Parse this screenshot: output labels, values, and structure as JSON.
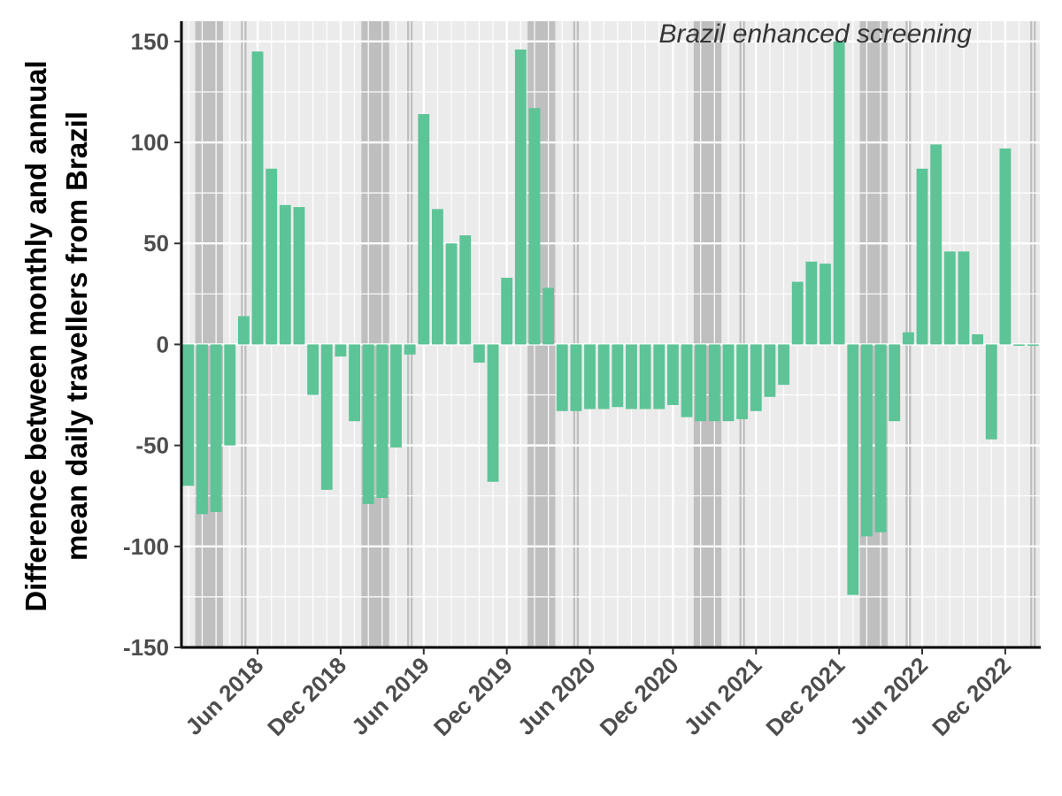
{
  "chart_data": {
    "type": "bar",
    "ylabel": [
      "Difference between monthly and annual",
      "mean daily travellers from Brazil"
    ],
    "ylim": [
      -150,
      160
    ],
    "yticks": [
      150,
      100,
      50,
      0,
      -50,
      -100,
      -150
    ],
    "ytick_labels": [
      "150",
      "100",
      "50",
      "0",
      "-50",
      "-100",
      "-150"
    ],
    "xticks": [
      {
        "label": "Jun 2018",
        "month_index": 5
      },
      {
        "label": "Dec 2018",
        "month_index": 11
      },
      {
        "label": "Jun 2019",
        "month_index": 17
      },
      {
        "label": "Dec 2019",
        "month_index": 23
      },
      {
        "label": "Jun 2020",
        "month_index": 29
      },
      {
        "label": "Dec 2020",
        "month_index": 35
      },
      {
        "label": "Jun 2021",
        "month_index": 41
      },
      {
        "label": "Dec 2021",
        "month_index": 47
      },
      {
        "label": "Jun 2022",
        "month_index": 53
      },
      {
        "label": "Dec 2022",
        "month_index": 59
      }
    ],
    "categories": [
      "Jan 2018",
      "Feb 2018",
      "Mar 2018",
      "Apr 2018",
      "May 2018",
      "Jun 2018",
      "Jul 2018",
      "Aug 2018",
      "Sep 2018",
      "Oct 2018",
      "Nov 2018",
      "Dec 2018",
      "Jan 2019",
      "Feb 2019",
      "Mar 2019",
      "Apr 2019",
      "May 2019",
      "Jun 2019",
      "Jul 2019",
      "Aug 2019",
      "Sep 2019",
      "Oct 2019",
      "Nov 2019",
      "Dec 2019",
      "Jan 2020",
      "Feb 2020",
      "Mar 2020",
      "Apr 2020",
      "May 2020",
      "Jun 2020",
      "Jul 2020",
      "Aug 2020",
      "Sep 2020",
      "Oct 2020",
      "Nov 2020",
      "Dec 2020",
      "Jan 2021",
      "Feb 2021",
      "Mar 2021",
      "Apr 2021",
      "May 2021",
      "Jun 2021",
      "Jul 2021",
      "Aug 2021",
      "Sep 2021",
      "Oct 2021",
      "Nov 2021",
      "Dec 2021",
      "Jan 2022",
      "Feb 2022",
      "Mar 2022",
      "Apr 2022",
      "May 2022",
      "Jun 2022",
      "Jul 2022",
      "Aug 2022",
      "Sep 2022",
      "Oct 2022",
      "Nov 2022",
      "Dec 2022",
      "Jan 2023",
      "Feb 2023"
    ],
    "values": [
      -70,
      -84,
      -83,
      -50,
      14,
      145,
      87,
      69,
      68,
      -25,
      -72,
      -6,
      -38,
      -79,
      -76,
      -51,
      -5,
      114,
      67,
      50,
      54,
      -9,
      -68,
      33,
      146,
      117,
      28,
      -33,
      -33,
      -32,
      -32,
      -31,
      -32,
      -32,
      -32,
      -30,
      -36,
      -38,
      -38,
      -38,
      -37,
      -33,
      -26,
      -20,
      31,
      41,
      40,
      150,
      -124,
      -95,
      -93,
      -38,
      6,
      87,
      99,
      46,
      46,
      5,
      -47,
      97,
      0,
      0
    ],
    "bar_color": "#5cc497",
    "shaded_periods": [
      {
        "start": 0.5,
        "end": 2.5,
        "kind": "wide"
      },
      {
        "start": 3.8,
        "end": 4.2,
        "kind": "narrow"
      },
      {
        "start": 12.5,
        "end": 14.5,
        "kind": "wide"
      },
      {
        "start": 15.8,
        "end": 16.2,
        "kind": "narrow"
      },
      {
        "start": 24.5,
        "end": 26.5,
        "kind": "wide"
      },
      {
        "start": 27.8,
        "end": 28.2,
        "kind": "narrow"
      },
      {
        "start": 36.5,
        "end": 38.5,
        "kind": "wide"
      },
      {
        "start": 39.8,
        "end": 40.2,
        "kind": "narrow"
      },
      {
        "start": 48.5,
        "end": 50.5,
        "kind": "wide"
      },
      {
        "start": 51.8,
        "end": 52.2,
        "kind": "narrow"
      },
      {
        "start": 60.8,
        "end": 61.2,
        "kind": "narrow"
      }
    ],
    "shade_color": "#bfbfbf",
    "panel_color": "#ebebeb",
    "grid": true,
    "annotation": "Brazil enhanced screening"
  }
}
